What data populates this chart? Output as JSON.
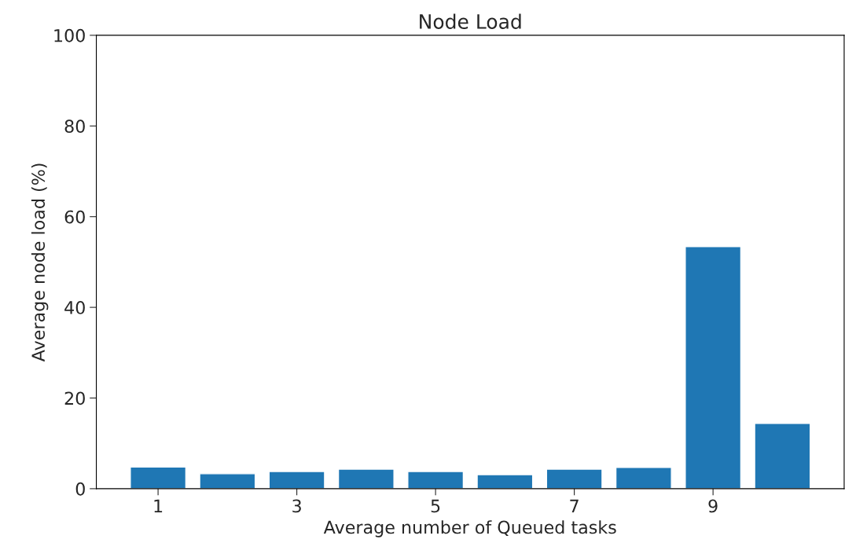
{
  "chart_data": {
    "type": "bar",
    "title": "Node Load",
    "xlabel": "Average number of Queued tasks",
    "ylabel": "Average node load (%)",
    "x": [
      1,
      2,
      3,
      4,
      5,
      6,
      7,
      8,
      9,
      10
    ],
    "values": [
      4.8,
      3.3,
      3.8,
      4.3,
      3.8,
      3.1,
      4.3,
      4.7,
      53.4,
      14.4
    ],
    "color": "#1f77b4",
    "xlim": [
      0.11,
      10.89
    ],
    "xticks": [
      1,
      3,
      5,
      7,
      9
    ],
    "ylim": [
      0,
      100
    ],
    "yticks": [
      0,
      20,
      40,
      60,
      80,
      100
    ],
    "grid": false,
    "legend": false
  }
}
